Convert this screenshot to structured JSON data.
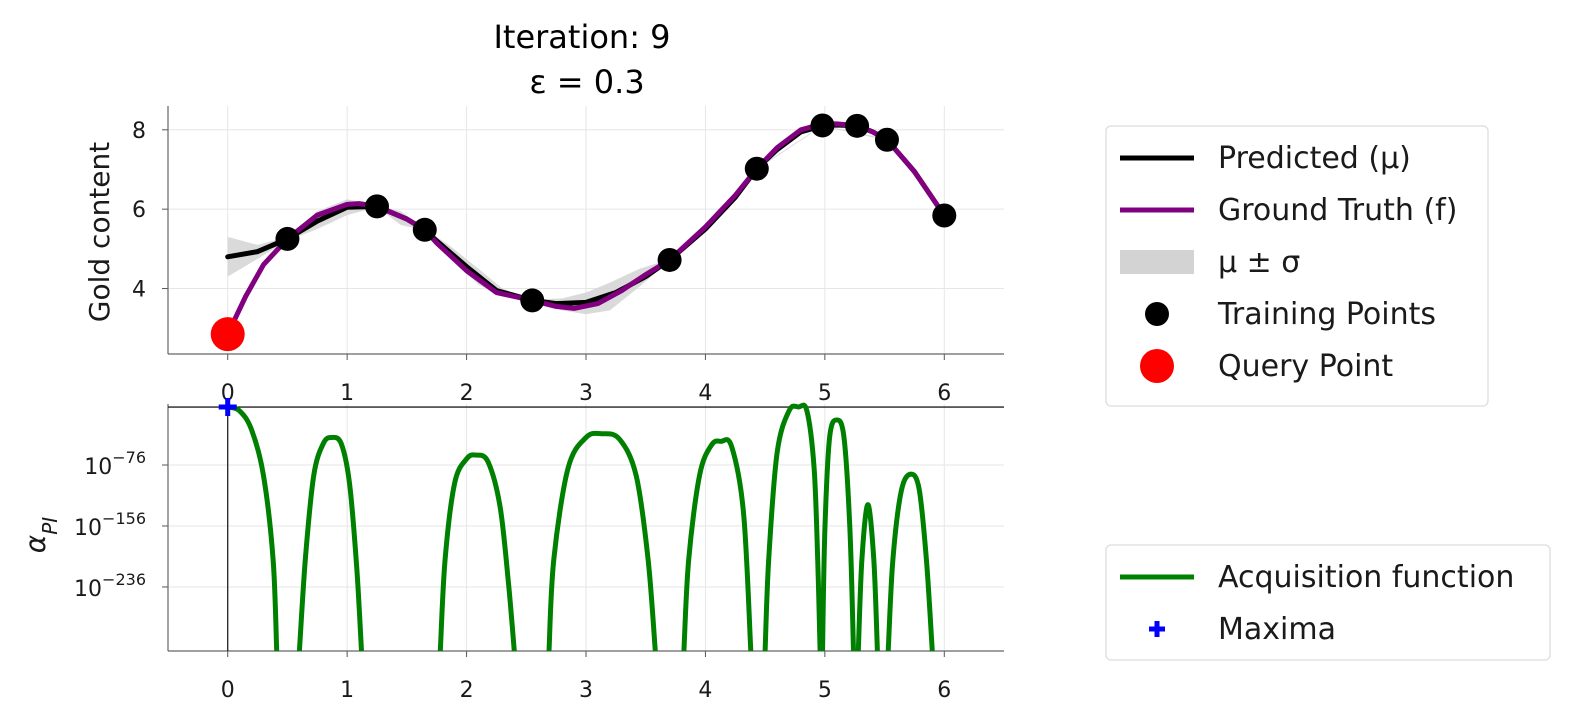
{
  "chart_data": [
    {
      "type": "line",
      "title_line1": "Iteration: 9",
      "title_line2": "ε = 0.3",
      "ylabel": "Gold content",
      "xlim": [
        -0.5,
        6.5
      ],
      "ylim": [
        2.35,
        8.6
      ],
      "xticks": [
        0,
        1,
        2,
        3,
        4,
        5,
        6
      ],
      "xtick_labels": [
        "0",
        "1",
        "2",
        "3",
        "4",
        "5",
        "6"
      ],
      "yticks": [
        4,
        6,
        8
      ],
      "ytick_labels": [
        "4",
        "6",
        "8"
      ],
      "grid": true,
      "series": [
        {
          "name": "Predicted (μ)",
          "color": "#000000",
          "x": [
            0,
            0.25,
            0.5,
            0.75,
            1.0,
            1.25,
            1.5,
            1.65,
            1.75,
            2.0,
            2.25,
            2.55,
            2.75,
            3.0,
            3.25,
            3.5,
            3.7,
            4.0,
            4.25,
            4.43,
            4.6,
            4.8,
            4.98,
            5.1,
            5.27,
            5.4,
            5.52,
            5.75,
            6.0
          ],
          "y": [
            4.8,
            4.93,
            5.25,
            5.7,
            6.05,
            6.07,
            5.75,
            5.48,
            5.2,
            4.55,
            3.95,
            3.7,
            3.62,
            3.65,
            3.9,
            4.3,
            4.72,
            5.5,
            6.3,
            7.02,
            7.5,
            7.95,
            8.1,
            8.12,
            8.1,
            7.95,
            7.75,
            6.95,
            5.84
          ]
        },
        {
          "name": "Ground Truth (f)",
          "color": "#800080",
          "x": [
            0,
            0.15,
            0.3,
            0.5,
            0.75,
            1.0,
            1.1,
            1.25,
            1.5,
            1.65,
            1.75,
            2.0,
            2.25,
            2.55,
            2.75,
            2.9,
            3.1,
            3.3,
            3.5,
            3.7,
            4.0,
            4.25,
            4.43,
            4.6,
            4.8,
            4.98,
            5.1,
            5.27,
            5.4,
            5.52,
            5.75,
            6.0
          ],
          "y": [
            2.85,
            3.8,
            4.6,
            5.25,
            5.85,
            6.12,
            6.14,
            6.07,
            5.75,
            5.48,
            5.15,
            4.45,
            3.9,
            3.7,
            3.55,
            3.5,
            3.62,
            3.95,
            4.35,
            4.72,
            5.55,
            6.35,
            7.02,
            7.55,
            8.0,
            8.15,
            8.15,
            8.1,
            7.95,
            7.75,
            6.95,
            5.84
          ]
        }
      ],
      "band": {
        "name": "μ ± σ",
        "color": "#d3d3d3",
        "x": [
          0,
          0.25,
          0.5,
          0.75,
          1.0,
          1.25,
          1.45,
          1.65,
          1.85,
          2.1,
          2.3,
          2.55,
          2.8,
          3.0,
          3.2,
          3.45,
          3.7,
          4.0,
          4.43,
          4.98,
          5.52,
          6.0
        ],
        "upper": [
          5.3,
          5.1,
          5.3,
          5.95,
          6.25,
          6.09,
          5.95,
          5.5,
          5.1,
          4.5,
          4.0,
          3.72,
          3.75,
          3.9,
          4.15,
          4.5,
          4.74,
          5.6,
          7.03,
          8.11,
          7.77,
          5.85
        ],
        "lower": [
          4.3,
          4.75,
          5.2,
          5.5,
          5.85,
          6.05,
          5.6,
          5.46,
          4.8,
          4.1,
          3.8,
          3.68,
          3.45,
          3.35,
          3.45,
          4.05,
          4.7,
          5.45,
          7.0,
          8.09,
          7.73,
          5.83
        ]
      },
      "training_points": {
        "name": "Training Points",
        "color": "#000000",
        "x": [
          0.5,
          1.25,
          1.65,
          2.55,
          3.7,
          4.43,
          4.98,
          5.27,
          5.52,
          6.0
        ],
        "y": [
          5.25,
          6.07,
          5.48,
          3.7,
          4.72,
          7.02,
          8.11,
          8.1,
          7.75,
          5.84
        ]
      },
      "query_point": {
        "name": "Query Point",
        "color": "#ff0000",
        "x": 0,
        "y": 2.85
      }
    },
    {
      "type": "line",
      "ylabel": "α_PI",
      "yscale": "log",
      "xlim": [
        -0.5,
        6.5
      ],
      "ylim_log10": [
        -320,
        4
      ],
      "xticks": [
        0,
        1,
        2,
        3,
        4,
        5,
        6
      ],
      "xtick_labels": [
        "0",
        "1",
        "2",
        "3",
        "4",
        "5",
        "6"
      ],
      "yticks_log10": [
        -76,
        -156,
        -236
      ],
      "ytick_labels": [
        "10",
        "10",
        "10"
      ],
      "ytick_exponents": [
        "−76",
        "−156",
        "−236"
      ],
      "grid": true,
      "reference_lines": {
        "y_log10": 0,
        "x": 0
      },
      "series": {
        "name": "Acquisition function",
        "color": "#008000",
        "segments": [
          {
            "x": [
              0,
              0.1,
              0.2,
              0.3,
              0.38,
              0.41
            ],
            "y_log10": [
              0,
              -5,
              -30,
              -90,
              -200,
              -320
            ]
          },
          {
            "x": [
              0.6,
              0.65,
              0.72,
              0.8,
              0.87,
              0.95,
              1.02,
              1.08,
              1.12
            ],
            "y_log10": [
              -320,
              -200,
              -90,
              -48,
              -40,
              -48,
              -100,
              -210,
              -320
            ]
          },
          {
            "x": [
              1.78,
              1.82,
              1.9,
              2.0,
              2.08,
              2.18,
              2.28,
              2.35,
              2.4
            ],
            "y_log10": [
              -320,
              -200,
              -100,
              -68,
              -63,
              -72,
              -130,
              -230,
              -320
            ]
          },
          {
            "x": [
              2.69,
              2.73,
              2.85,
              3.0,
              3.13,
              3.28,
              3.42,
              3.52,
              3.58
            ],
            "y_log10": [
              -320,
              -200,
              -80,
              -40,
              -35,
              -42,
              -90,
              -200,
              -320
            ]
          },
          {
            "x": [
              3.82,
              3.86,
              3.95,
              4.05,
              4.13,
              4.22,
              4.32,
              4.38
            ],
            "y_log10": [
              -320,
              -200,
              -90,
              -50,
              -45,
              -52,
              -140,
              -320
            ]
          },
          {
            "x": [
              4.5,
              4.53,
              4.6,
              4.7,
              4.78,
              4.85,
              4.91,
              4.94,
              4.96
            ],
            "y_log10": [
              -320,
              -200,
              -60,
              -5,
              0,
              -5,
              -80,
              -200,
              -320
            ]
          },
          {
            "x": [
              4.98,
              5.0,
              5.04,
              5.1,
              5.16,
              5.21,
              5.24
            ],
            "y_log10": [
              -320,
              -160,
              -40,
              -17,
              -40,
              -160,
              -320
            ]
          },
          {
            "x": [
              5.28,
              5.31,
              5.36,
              5.41,
              5.44
            ],
            "y_log10": [
              -320,
              -200,
              -128,
              -200,
              -320
            ]
          },
          {
            "x": [
              5.53,
              5.57,
              5.64,
              5.72,
              5.79,
              5.85,
              5.9
            ],
            "y_log10": [
              -320,
              -200,
              -110,
              -88,
              -108,
              -200,
              -320
            ]
          }
        ]
      },
      "maxima": {
        "name": "Maxima",
        "color": "#0000ff",
        "x": 0,
        "y_log10": 0
      }
    }
  ],
  "legend_top": {
    "items": [
      {
        "label": "Predicted (μ)",
        "kind": "line",
        "color": "#000000"
      },
      {
        "label": "Ground Truth (f)",
        "kind": "line",
        "color": "#800080"
      },
      {
        "label": "μ ± σ",
        "kind": "band",
        "color": "#d3d3d3"
      },
      {
        "label": "Training Points",
        "kind": "dot",
        "color": "#000000"
      },
      {
        "label": "Query Point",
        "kind": "bigdot",
        "color": "#ff0000"
      }
    ]
  },
  "legend_bottom": {
    "items": [
      {
        "label": "Acquisition function",
        "kind": "line",
        "color": "#008000"
      },
      {
        "label": "Maxima",
        "kind": "plus",
        "color": "#0000ff"
      }
    ]
  }
}
